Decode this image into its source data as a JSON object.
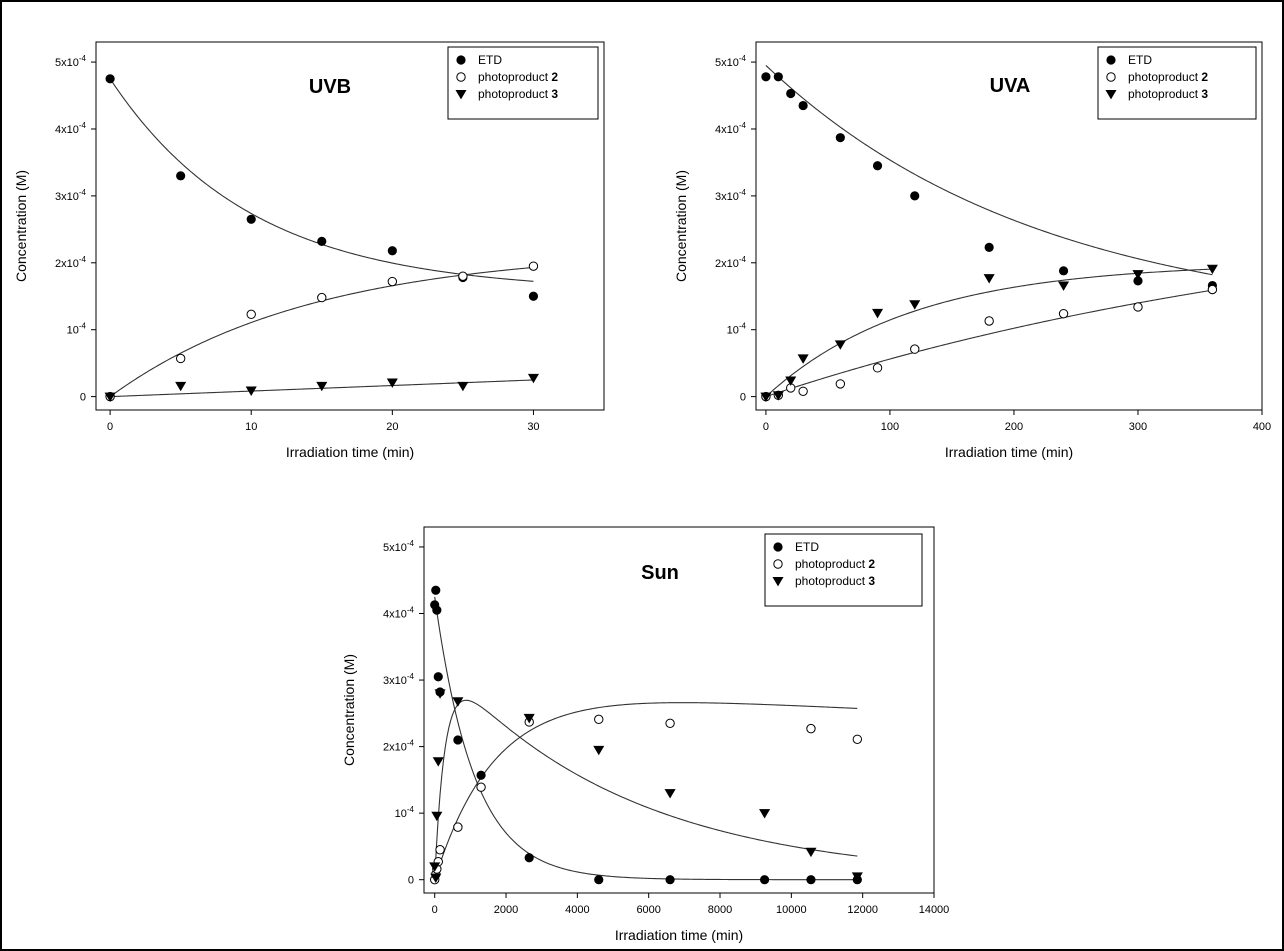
{
  "chart_data": [
    {
      "type": "scatter",
      "title": "UVB",
      "xlabel": "Irradiation time (min)",
      "ylabel": "Concentration (M)",
      "xlim": [
        -1,
        35
      ],
      "ylim": [
        -2e-05,
        0.00053
      ],
      "xticks": [
        {
          "v": 0,
          "label": "0"
        },
        {
          "v": 10,
          "label": "10"
        },
        {
          "v": 20,
          "label": "20"
        },
        {
          "v": 30,
          "label": "30"
        }
      ],
      "yticks": [
        {
          "v": 0,
          "base": "0",
          "exp": ""
        },
        {
          "v": 0.0001,
          "base": "10",
          "exp": "-4"
        },
        {
          "v": 0.0002,
          "base": "2x10",
          "exp": "-4"
        },
        {
          "v": 0.0003,
          "base": "3x10",
          "exp": "-4"
        },
        {
          "v": 0.0004,
          "base": "4x10",
          "exp": "-4"
        },
        {
          "v": 0.0005,
          "base": "5x10",
          "exp": "-4"
        }
      ],
      "legend_position": "top-right",
      "series": [
        {
          "name": "ETD",
          "bold": "",
          "marker": "filled-circle",
          "x": [
            0,
            5,
            10,
            15,
            20,
            25,
            30
          ],
          "y": [
            0.000475,
            0.00033,
            0.000265,
            0.000232,
            0.000218,
            0.000178,
            0.00015
          ],
          "fit": {
            "kind": "exp_decay",
            "a": 0.0001565,
            "b": 0.0003185,
            "k": 0.1
          }
        },
        {
          "name": "photoproduct ",
          "bold": "2",
          "marker": "open-circle",
          "x": [
            0,
            5,
            10,
            15,
            20,
            25,
            30
          ],
          "y": [
            0,
            5.7e-05,
            0.000123,
            0.000148,
            0.000172,
            0.00018,
            0.000195
          ],
          "fit": {
            "kind": "exp_rise",
            "a": 0.00022,
            "k": 0.07
          }
        },
        {
          "name": "photoproduct ",
          "bold": "3",
          "marker": "filled-triangle-down",
          "x": [
            0,
            5,
            10,
            15,
            20,
            25,
            30
          ],
          "y": [
            0,
            1.6e-05,
            9e-06,
            1.6e-05,
            2.1e-05,
            1.6e-05,
            2.8e-05
          ],
          "fit": {
            "kind": "linear",
            "m": 8.3e-07,
            "c": 0
          }
        }
      ]
    },
    {
      "type": "scatter",
      "title": "UVA",
      "xlabel": "Irradiation time (min)",
      "ylabel": "Concentration (M)",
      "xlim": [
        -8,
        400
      ],
      "ylim": [
        -2e-05,
        0.00053
      ],
      "xticks": [
        {
          "v": 0,
          "label": "0"
        },
        {
          "v": 100,
          "label": "100"
        },
        {
          "v": 200,
          "label": "200"
        },
        {
          "v": 300,
          "label": "300"
        },
        {
          "v": 400,
          "label": "400"
        }
      ],
      "yticks": [
        {
          "v": 0,
          "base": "0",
          "exp": ""
        },
        {
          "v": 0.0001,
          "base": "10",
          "exp": "-4"
        },
        {
          "v": 0.0002,
          "base": "2x10",
          "exp": "-4"
        },
        {
          "v": 0.0003,
          "base": "3x10",
          "exp": "-4"
        },
        {
          "v": 0.0004,
          "base": "4x10",
          "exp": "-4"
        },
        {
          "v": 0.0005,
          "base": "5x10",
          "exp": "-4"
        }
      ],
      "legend_position": "top-right",
      "series": [
        {
          "name": "ETD",
          "bold": "",
          "marker": "filled-circle",
          "x": [
            0,
            10,
            20,
            30,
            60,
            90,
            120,
            180,
            240,
            300,
            360
          ],
          "y": [
            0.000478,
            0.000478,
            0.000453,
            0.000435,
            0.000387,
            0.000345,
            0.0003,
            0.000223,
            0.000188,
            0.000173,
            0.000166
          ],
          "fit": {
            "kind": "exp_decay",
            "a": 0.000105,
            "b": 0.00039,
            "k": 0.0045
          }
        },
        {
          "name": "photoproduct ",
          "bold": "2",
          "marker": "open-circle",
          "x": [
            0,
            10,
            20,
            30,
            60,
            90,
            120,
            180,
            240,
            300,
            360
          ],
          "y": [
            0,
            2e-06,
            1.3e-05,
            8e-06,
            1.9e-05,
            4.3e-05,
            7.1e-05,
            0.000113,
            0.000124,
            0.000134,
            0.00016
          ],
          "fit": {
            "kind": "exp_rise",
            "a": 0.00031,
            "k": 0.002
          }
        },
        {
          "name": "photoproduct ",
          "bold": "3",
          "marker": "filled-triangle-down",
          "x": [
            0,
            10,
            20,
            30,
            60,
            90,
            120,
            180,
            240,
            300,
            360
          ],
          "y": [
            0,
            2e-06,
            2.4e-05,
            5.7e-05,
            7.8e-05,
            0.000125,
            0.000138,
            0.000177,
            0.000166,
            0.000183,
            0.000191
          ],
          "fit": {
            "kind": "exp_rise",
            "a": 0.0002,
            "k": 0.0085
          }
        }
      ]
    },
    {
      "type": "scatter",
      "title": "Sun",
      "xlabel": "Irradiation time (min)",
      "ylabel": "Concentration (M)",
      "xlim": [
        -300,
        14000
      ],
      "ylim": [
        -2e-05,
        0.00053
      ],
      "xticks": [
        {
          "v": 0,
          "label": "0"
        },
        {
          "v": 2000,
          "label": "2000"
        },
        {
          "v": 4000,
          "label": "4000"
        },
        {
          "v": 6000,
          "label": "6000"
        },
        {
          "v": 8000,
          "label": "8000"
        },
        {
          "v": 10000,
          "label": "10000"
        },
        {
          "v": 12000,
          "label": "12000"
        },
        {
          "v": 14000,
          "label": "14000"
        }
      ],
      "yticks": [
        {
          "v": 0,
          "base": "0",
          "exp": ""
        },
        {
          "v": 0.0001,
          "base": "10",
          "exp": "-4"
        },
        {
          "v": 0.0002,
          "base": "2x10",
          "exp": "-4"
        },
        {
          "v": 0.0003,
          "base": "3x10",
          "exp": "-4"
        },
        {
          "v": 0.0004,
          "base": "4x10",
          "exp": "-4"
        },
        {
          "v": 0.0005,
          "base": "5x10",
          "exp": "-4"
        }
      ],
      "legend_position": "top-right",
      "series": [
        {
          "name": "ETD",
          "bold": "",
          "marker": "filled-circle",
          "x": [
            0,
            30,
            60,
            100,
            150,
            650,
            1300,
            2650,
            4600,
            6600,
            9250,
            10550,
            11850
          ],
          "y": [
            0.000413,
            0.000435,
            0.000405,
            0.000305,
            0.000282,
            0.00021,
            0.000157,
            3.3e-05,
            0,
            0,
            0,
            0,
            0
          ],
          "fit": {
            "kind": "exp_decay",
            "a": 0,
            "b": 0.000425,
            "k": 0.0009
          }
        },
        {
          "name": "photoproduct ",
          "bold": "2",
          "marker": "open-circle",
          "x": [
            0,
            30,
            60,
            100,
            150,
            650,
            1300,
            2650,
            4600,
            6600,
            10550,
            11850
          ],
          "y": [
            0,
            8e-06,
            1.6e-05,
            2.7e-05,
            4.5e-05,
            7.9e-05,
            0.000139,
            0.000237,
            0.000241,
            0.000235,
            0.000227,
            0.000211
          ],
          "fit": {
            "kind": "bateman",
            "a": 0.00029,
            "k1": 0.0006,
            "k2": 1e-05
          }
        },
        {
          "name": "photoproduct ",
          "bold": "3",
          "marker": "filled-triangle-down",
          "x": [
            0,
            30,
            60,
            100,
            150,
            650,
            2650,
            4600,
            6600,
            9250,
            10550,
            11850
          ],
          "y": [
            2e-05,
            3e-06,
            9.6e-05,
            0.000178,
            0.00028,
            0.000268,
            0.000243,
            0.000195,
            0.00013,
            0.0001,
            4.2e-05,
            5e-06
          ],
          "fit": {
            "kind": "bateman",
            "a": 0.000337,
            "k1": 0.0035,
            "k2": 0.00019
          }
        }
      ]
    }
  ]
}
